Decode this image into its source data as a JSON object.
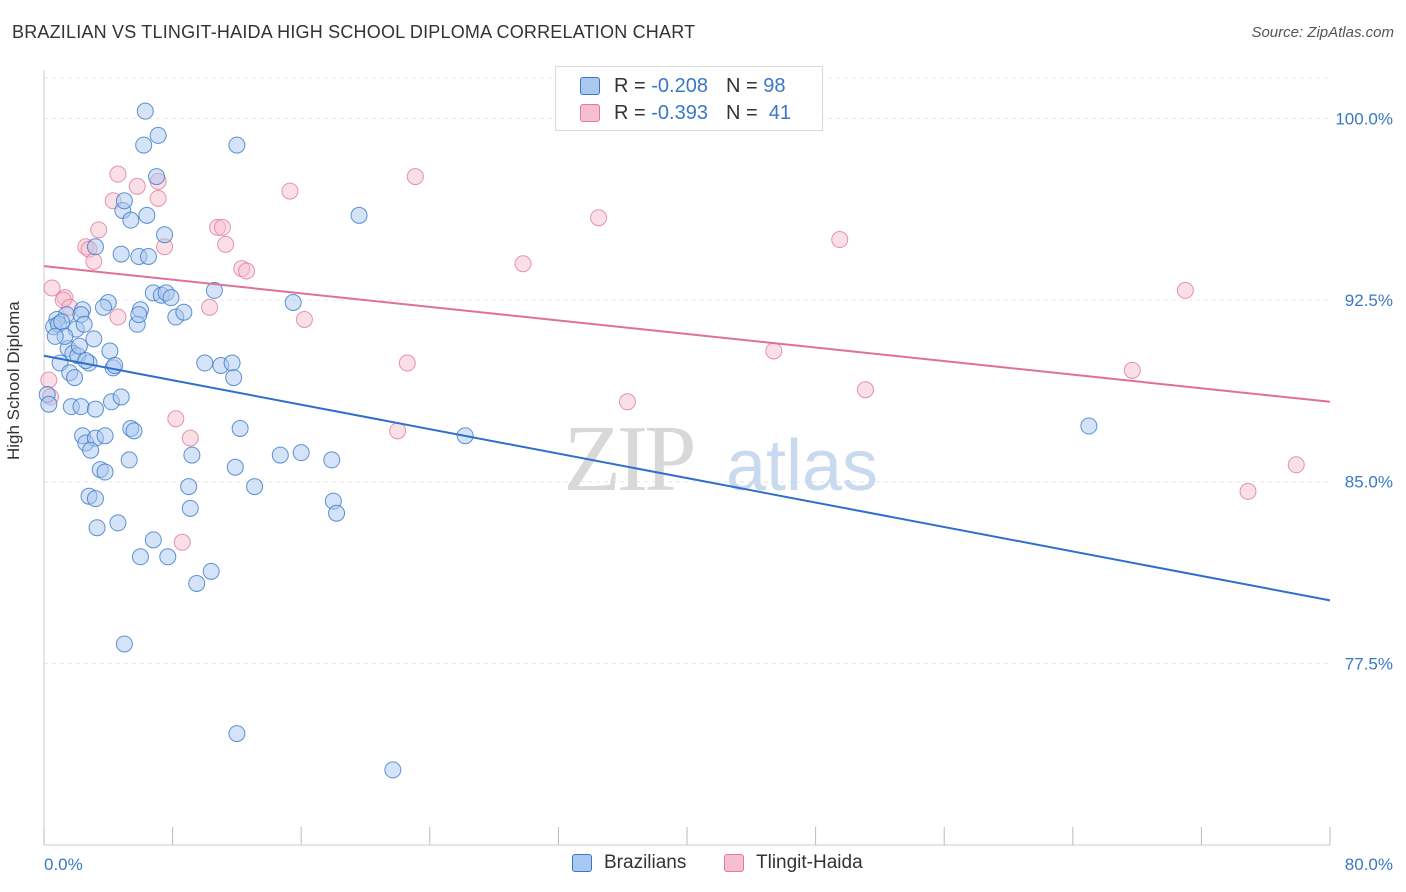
{
  "title": "BRAZILIAN VS TLINGIT-HAIDA HIGH SCHOOL DIPLOMA CORRELATION CHART",
  "source": "Source: ZipAtlas.com",
  "watermark": {
    "zip": "ZIP",
    "atlas": "atlas"
  },
  "legend": {
    "r_label": "R =",
    "n_label": "N =",
    "rows": [
      {
        "r": "-0.208",
        "n": "98"
      },
      {
        "r": "-0.393",
        "n": "41"
      }
    ]
  },
  "bottom_legend": [
    "Brazilians",
    "Tlingit-Haida"
  ],
  "colors": {
    "blue_fill": "#a9c8ef",
    "blue_stroke": "#3a78c6",
    "blue_line": "#2f6fcb",
    "pink_fill": "#f6bfd0",
    "pink_stroke": "#e07a9a",
    "pink_line": "#e0709a",
    "axis_text": "#3a78c6",
    "grid": "#e6e6e6"
  },
  "chart_data": {
    "type": "scatter",
    "title": "BRAZILIAN VS TLINGIT-HAIDA HIGH SCHOOL DIPLOMA CORRELATION CHART",
    "xlabel": "",
    "ylabel": "High School Diploma",
    "xlim": [
      0,
      80
    ],
    "ylim": [
      70.0,
      102.0
    ],
    "x_tick_labels": [
      "0.0%",
      "80.0%"
    ],
    "y_ticks": [
      77.5,
      85.0,
      92.5,
      100.0
    ],
    "y_tick_labels": [
      "77.5%",
      "85.0%",
      "92.5%",
      "100.0%"
    ],
    "grid": true,
    "legend_position": "top-center",
    "series": [
      {
        "name": "Brazilians",
        "r": -0.208,
        "n": 98,
        "trend": {
          "x": [
            0,
            80
          ],
          "y": [
            90.2,
            80.1
          ]
        },
        "points": [
          [
            6.3,
            100.3
          ],
          [
            7.1,
            99.3
          ],
          [
            6.2,
            98.9
          ],
          [
            12.0,
            98.9
          ],
          [
            7.0,
            97.6
          ],
          [
            4.9,
            96.2
          ],
          [
            5.0,
            96.6
          ],
          [
            6.4,
            96.0
          ],
          [
            5.4,
            95.8
          ],
          [
            19.6,
            96.0
          ],
          [
            7.5,
            95.2
          ],
          [
            5.9,
            94.3
          ],
          [
            4.8,
            94.4
          ],
          [
            3.2,
            94.7
          ],
          [
            6.5,
            94.3
          ],
          [
            2.4,
            92.1
          ],
          [
            6.8,
            92.8
          ],
          [
            7.3,
            92.7
          ],
          [
            7.6,
            92.8
          ],
          [
            10.6,
            92.9
          ],
          [
            4.0,
            92.4
          ],
          [
            15.5,
            92.4
          ],
          [
            1.4,
            91.9
          ],
          [
            0.8,
            91.7
          ],
          [
            2.3,
            91.9
          ],
          [
            6.0,
            92.1
          ],
          [
            8.2,
            91.8
          ],
          [
            8.7,
            92.0
          ],
          [
            0.6,
            91.4
          ],
          [
            0.9,
            91.5
          ],
          [
            1.1,
            91.6
          ],
          [
            2.0,
            91.3
          ],
          [
            2.5,
            91.5
          ],
          [
            3.1,
            90.9
          ],
          [
            5.8,
            91.5
          ],
          [
            4.1,
            90.4
          ],
          [
            1.5,
            90.5
          ],
          [
            1.8,
            90.3
          ],
          [
            2.1,
            90.2
          ],
          [
            1.0,
            89.9
          ],
          [
            2.8,
            89.9
          ],
          [
            4.3,
            89.7
          ],
          [
            10.0,
            89.9
          ],
          [
            11.0,
            89.8
          ],
          [
            11.7,
            89.9
          ],
          [
            11.8,
            89.3
          ],
          [
            1.6,
            89.5
          ],
          [
            1.9,
            89.3
          ],
          [
            0.2,
            88.6
          ],
          [
            1.7,
            88.1
          ],
          [
            4.2,
            88.3
          ],
          [
            4.8,
            88.5
          ],
          [
            2.3,
            88.1
          ],
          [
            3.2,
            88.0
          ],
          [
            12.2,
            87.2
          ],
          [
            2.4,
            86.9
          ],
          [
            2.6,
            86.6
          ],
          [
            3.2,
            86.8
          ],
          [
            3.8,
            86.9
          ],
          [
            5.4,
            87.2
          ],
          [
            5.6,
            87.1
          ],
          [
            2.9,
            86.3
          ],
          [
            9.2,
            86.1
          ],
          [
            5.3,
            85.9
          ],
          [
            11.9,
            85.6
          ],
          [
            14.7,
            86.1
          ],
          [
            16.0,
            86.2
          ],
          [
            17.9,
            85.9
          ],
          [
            26.2,
            86.9
          ],
          [
            65.0,
            87.3
          ],
          [
            3.5,
            85.5
          ],
          [
            3.8,
            85.4
          ],
          [
            9.0,
            84.8
          ],
          [
            13.1,
            84.8
          ],
          [
            2.8,
            84.4
          ],
          [
            3.2,
            84.3
          ],
          [
            18.0,
            84.2
          ],
          [
            9.1,
            83.9
          ],
          [
            18.2,
            83.7
          ],
          [
            4.6,
            83.3
          ],
          [
            3.3,
            83.1
          ],
          [
            6.8,
            82.6
          ],
          [
            6.0,
            81.9
          ],
          [
            7.7,
            81.9
          ],
          [
            10.4,
            81.3
          ],
          [
            9.5,
            80.8
          ],
          [
            5.0,
            78.3
          ],
          [
            12.0,
            74.6
          ],
          [
            21.7,
            73.1
          ],
          [
            0.3,
            88.2
          ],
          [
            1.3,
            91.0
          ],
          [
            2.2,
            90.6
          ],
          [
            4.4,
            89.8
          ],
          [
            7.9,
            92.6
          ],
          [
            5.9,
            91.9
          ],
          [
            3.7,
            92.2
          ],
          [
            0.7,
            91.0
          ],
          [
            2.6,
            90.0
          ]
        ]
      },
      {
        "name": "Tlingit-Haida",
        "r": -0.393,
        "n": 41,
        "trend": {
          "x": [
            0,
            80
          ],
          "y": [
            93.9,
            88.3
          ]
        },
        "points": [
          [
            4.6,
            97.7
          ],
          [
            23.1,
            97.6
          ],
          [
            7.1,
            97.4
          ],
          [
            5.8,
            97.2
          ],
          [
            15.3,
            97.0
          ],
          [
            4.3,
            96.6
          ],
          [
            7.1,
            96.7
          ],
          [
            34.5,
            95.9
          ],
          [
            10.8,
            95.5
          ],
          [
            11.1,
            95.5
          ],
          [
            3.4,
            95.4
          ],
          [
            49.5,
            95.0
          ],
          [
            2.6,
            94.7
          ],
          [
            2.8,
            94.6
          ],
          [
            7.5,
            94.7
          ],
          [
            11.3,
            94.8
          ],
          [
            3.1,
            94.1
          ],
          [
            29.8,
            94.0
          ],
          [
            12.3,
            93.8
          ],
          [
            12.6,
            93.7
          ],
          [
            0.5,
            93.0
          ],
          [
            1.3,
            92.6
          ],
          [
            1.2,
            92.5
          ],
          [
            4.6,
            91.8
          ],
          [
            10.3,
            92.2
          ],
          [
            16.2,
            91.7
          ],
          [
            71.0,
            92.9
          ],
          [
            45.4,
            90.4
          ],
          [
            22.6,
            89.9
          ],
          [
            67.7,
            89.6
          ],
          [
            0.3,
            89.2
          ],
          [
            51.1,
            88.8
          ],
          [
            36.3,
            88.3
          ],
          [
            8.2,
            87.6
          ],
          [
            22.0,
            87.1
          ],
          [
            9.1,
            86.8
          ],
          [
            0.4,
            88.5
          ],
          [
            77.9,
            85.7
          ],
          [
            74.9,
            84.6
          ],
          [
            8.6,
            82.5
          ],
          [
            1.6,
            92.2
          ]
        ]
      }
    ]
  }
}
